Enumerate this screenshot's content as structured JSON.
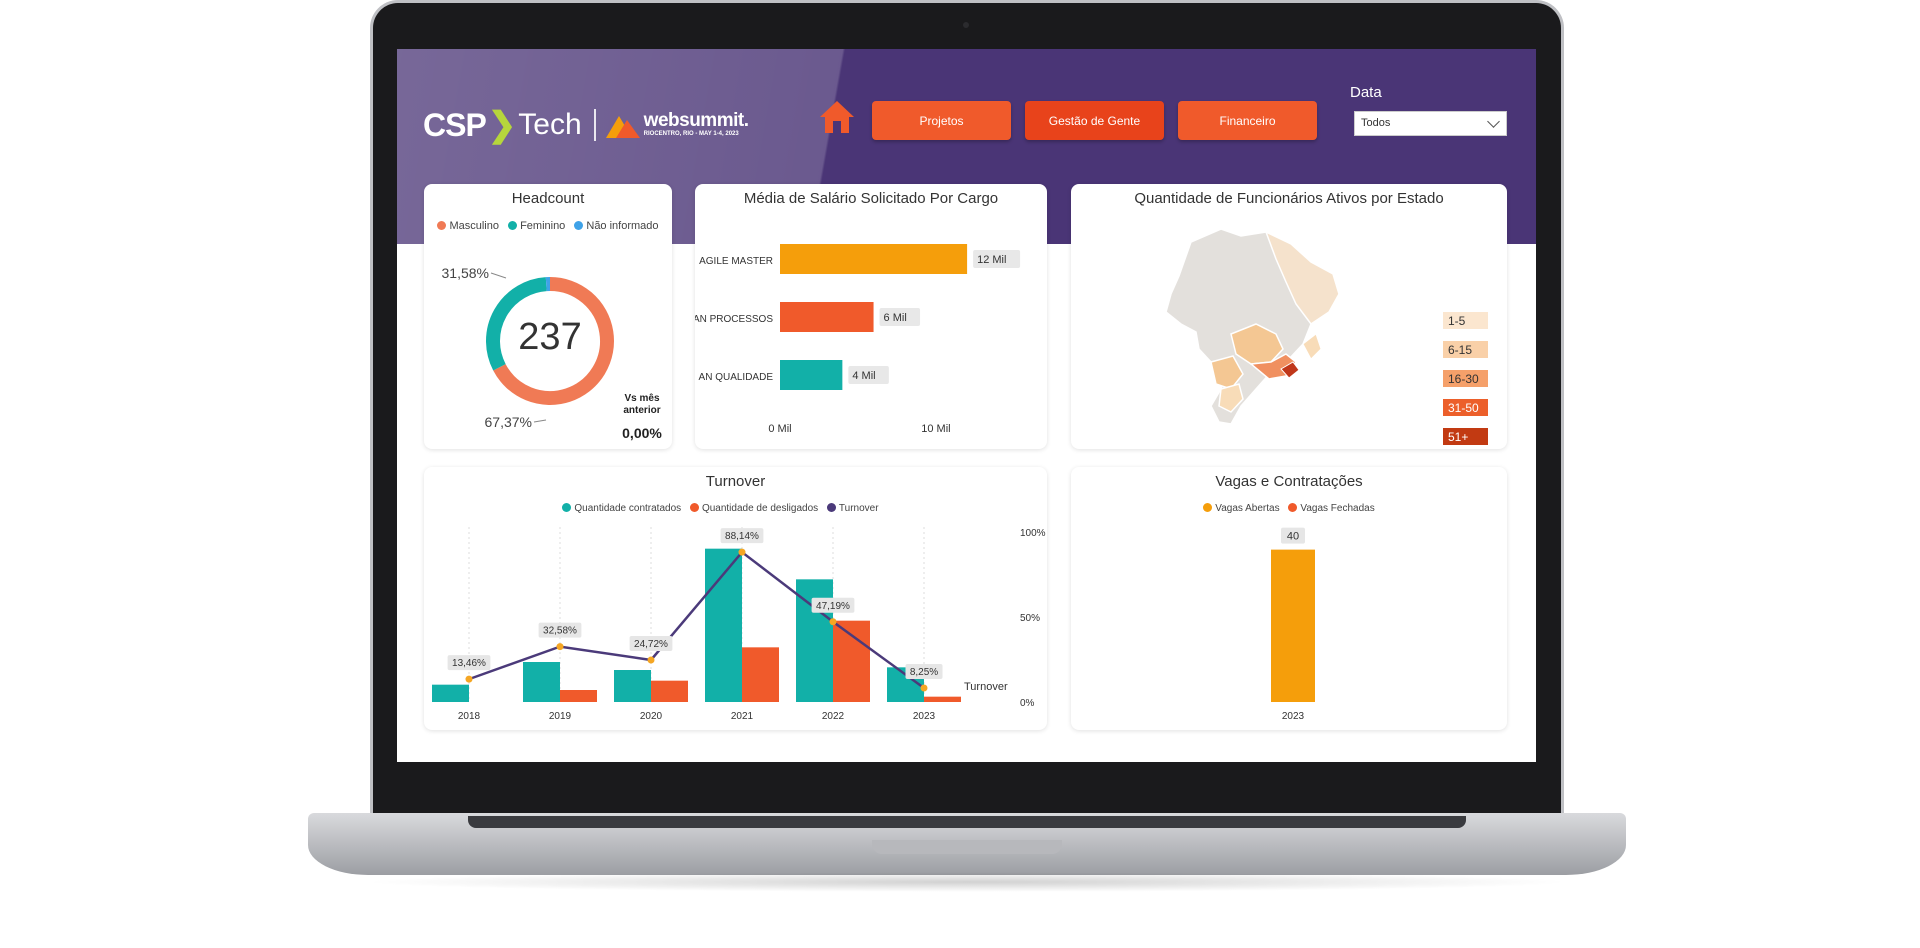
{
  "header": {
    "logo_csp": "CSP",
    "logo_tech": "Tech",
    "logo_ws_name": "websummit.",
    "logo_ws_sub": "RIOCENTRO, RIO - MAY 1-4, 2023",
    "nav": [
      {
        "label": "Projetos"
      },
      {
        "label": "Gestão de Gente"
      },
      {
        "label": "Financeiro"
      }
    ],
    "filter_label": "Data",
    "filter_value": "Todos"
  },
  "colors": {
    "header_purple": "#4a3576",
    "orange": "#f05a2b",
    "teal": "#12b0a8",
    "amber": "#f59e0b",
    "line_purple": "#4b3a7a",
    "blue": "#3fa2e8"
  },
  "headcount": {
    "title": "Headcount",
    "legend": [
      "Masculino",
      "Feminino",
      "Não informado"
    ],
    "total": "237",
    "pct_top": "31,58%",
    "pct_bottom": "67,37%",
    "vs_label": "Vs mês anterior",
    "vs_value": "0,00%",
    "chart_data": {
      "type": "pie",
      "categories": [
        "Masculino",
        "Feminino",
        "Não informado"
      ],
      "values": [
        67.37,
        31.58,
        1.05
      ]
    }
  },
  "salario": {
    "title": "Média de Salário Solicitado Por Cargo",
    "chart_data": {
      "type": "bar",
      "categories": [
        "AGILE MASTER",
        "AN PROCESSOS",
        "AN QUALIDADE"
      ],
      "values": [
        12,
        6,
        4
      ],
      "data_labels": [
        "12 Mil",
        "6 Mil",
        "4 Mil"
      ],
      "x_ticks": [
        "0 Mil",
        "10 Mil"
      ],
      "xlim": [
        0,
        14
      ],
      "colors": [
        "#f59e0b",
        "#f05a2b",
        "#12b0a8"
      ]
    }
  },
  "mapa": {
    "title": "Quantidade de Funcionários Ativos por Estado",
    "legend": [
      "1-5",
      "6-15",
      "16-30",
      "31-50",
      "51+"
    ],
    "legend_colors": [
      "#fbe6cf",
      "#f9d0a8",
      "#f5a06a",
      "#ec5f2a",
      "#c23a12"
    ]
  },
  "turnover": {
    "title": "Turnover",
    "legend": [
      "Quantidade contratados",
      "Quantidade de desligados",
      "Turnover"
    ],
    "axis_right_label": "Turnover",
    "chart_data": {
      "type": "bar",
      "categories": [
        "2018",
        "2019",
        "2020",
        "2021",
        "2022",
        "2023"
      ],
      "series": [
        {
          "name": "Quantidade contratados",
          "values": [
            13,
            30,
            24,
            115,
            92,
            26
          ]
        },
        {
          "name": "Quantidade de desligados",
          "values": [
            0,
            9,
            16,
            41,
            61,
            4
          ]
        },
        {
          "name": "Turnover",
          "values": [
            13.46,
            32.58,
            24.72,
            88.14,
            47.19,
            8.25
          ]
        }
      ],
      "turnover_labels": [
        "13,46%",
        "32,58%",
        "24,72%",
        "88,14%",
        "47,19%",
        "8,25%"
      ],
      "y2_ticks": [
        "100%",
        "50%",
        "0%"
      ],
      "y2lim": [
        0,
        100
      ],
      "ylim": [
        0,
        120
      ]
    }
  },
  "vagas": {
    "title": "Vagas e Contratações",
    "legend": [
      "Vagas Abertas",
      "Vagas Fechadas"
    ],
    "chart_data": {
      "type": "bar",
      "categories": [
        "2023"
      ],
      "series": [
        {
          "name": "Vagas Abertas",
          "values": [
            40
          ]
        },
        {
          "name": "Vagas Fechadas",
          "values": [
            0
          ]
        }
      ],
      "data_labels": [
        "40"
      ],
      "ylim": [
        0,
        42
      ]
    }
  }
}
